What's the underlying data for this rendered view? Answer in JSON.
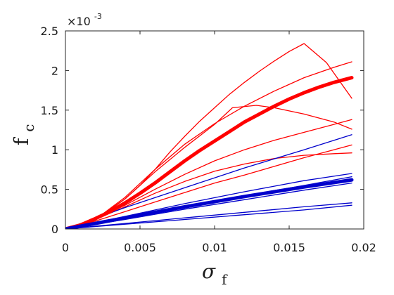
{
  "chart_data": {
    "type": "line",
    "title": "",
    "xlabel": "σ",
    "xlabel_sub": "f",
    "ylabel": "f",
    "ylabel_sub": "c",
    "y_multiplier_base": "×10",
    "y_multiplier_exp": "-3",
    "xlim": [
      0,
      0.02
    ],
    "ylim": [
      0,
      2.5
    ],
    "xticks": [
      0,
      0.005,
      0.01,
      0.015,
      0.02
    ],
    "xtick_labels": [
      "0",
      "0.005",
      "0.01",
      "0.015",
      "0.02"
    ],
    "yticks": [
      0,
      0.5,
      1,
      1.5,
      2,
      2.5
    ],
    "ytick_labels": [
      "0",
      "0.5",
      "1",
      "1.5",
      "2",
      "2.5"
    ],
    "grid": false,
    "colors": {
      "red": "#ff0000",
      "blue": "#0000cc"
    },
    "series": [
      {
        "color": "red",
        "width": 5,
        "x": [
          0,
          0.001,
          0.002,
          0.003,
          0.004,
          0.005,
          0.006,
          0.007,
          0.008,
          0.009,
          0.01,
          0.011,
          0.012,
          0.013,
          0.014,
          0.015,
          0.016,
          0.017,
          0.018,
          0.0192
        ],
        "y": [
          0,
          0.05,
          0.13,
          0.22,
          0.33,
          0.45,
          0.58,
          0.72,
          0.86,
          0.99,
          1.11,
          1.23,
          1.35,
          1.45,
          1.55,
          1.64,
          1.72,
          1.79,
          1.85,
          1.91
        ]
      },
      {
        "color": "red",
        "width": 1.3,
        "x": [
          0,
          0.002,
          0.003,
          0.004,
          0.005,
          0.006,
          0.007,
          0.008,
          0.009,
          0.01,
          0.011,
          0.012,
          0.013,
          0.014,
          0.015,
          0.016,
          0.0175,
          0.0192
        ],
        "y": [
          0,
          0.12,
          0.24,
          0.38,
          0.55,
          0.75,
          0.97,
          1.17,
          1.36,
          1.53,
          1.7,
          1.85,
          1.99,
          2.12,
          2.24,
          2.34,
          2.1,
          1.65
        ]
      },
      {
        "color": "red",
        "width": 1.3,
        "x": [
          0,
          0.002,
          0.004,
          0.006,
          0.008,
          0.01,
          0.012,
          0.014,
          0.016,
          0.018,
          0.0192
        ],
        "y": [
          0,
          0.12,
          0.4,
          0.75,
          1.07,
          1.33,
          1.55,
          1.74,
          1.91,
          2.04,
          2.11
        ]
      },
      {
        "color": "red",
        "width": 1.3,
        "x": [
          0,
          0.002,
          0.004,
          0.006,
          0.008,
          0.01,
          0.0112,
          0.0128,
          0.014,
          0.016,
          0.018,
          0.0192
        ],
        "y": [
          0,
          0.12,
          0.38,
          0.72,
          1.03,
          1.32,
          1.53,
          1.56,
          1.53,
          1.45,
          1.35,
          1.26
        ]
      },
      {
        "color": "red",
        "width": 1.3,
        "x": [
          0,
          0.002,
          0.004,
          0.006,
          0.008,
          0.01,
          0.012,
          0.014,
          0.016,
          0.018,
          0.0192
        ],
        "y": [
          0,
          0.12,
          0.3,
          0.5,
          0.69,
          0.86,
          1.0,
          1.12,
          1.22,
          1.32,
          1.38
        ]
      },
      {
        "color": "red",
        "width": 1.3,
        "x": [
          0,
          0.002,
          0.004,
          0.006,
          0.008,
          0.01,
          0.012,
          0.014,
          0.016,
          0.018,
          0.0192
        ],
        "y": [
          0,
          0.12,
          0.28,
          0.45,
          0.6,
          0.73,
          0.82,
          0.89,
          0.93,
          0.95,
          0.96
        ]
      },
      {
        "color": "red",
        "width": 1.3,
        "x": [
          0,
          0.002,
          0.004,
          0.006,
          0.008,
          0.01,
          0.012,
          0.014,
          0.016,
          0.018,
          0.0192
        ],
        "y": [
          0,
          0.1,
          0.22,
          0.34,
          0.46,
          0.58,
          0.68,
          0.79,
          0.9,
          1.0,
          1.06
        ]
      },
      {
        "color": "blue",
        "width": 1.3,
        "x": [
          0,
          0.004,
          0.008,
          0.012,
          0.016,
          0.0192
        ],
        "y": [
          0,
          0.27,
          0.52,
          0.77,
          1.0,
          1.19
        ]
      },
      {
        "color": "blue",
        "width": 1.3,
        "x": [
          0,
          0.004,
          0.008,
          0.012,
          0.016,
          0.0192
        ],
        "y": [
          0,
          0.16,
          0.32,
          0.47,
          0.61,
          0.7
        ]
      },
      {
        "color": "blue",
        "width": 1.3,
        "x": [
          0,
          0.004,
          0.008,
          0.012,
          0.016,
          0.0192
        ],
        "y": [
          0,
          0.14,
          0.28,
          0.42,
          0.55,
          0.66
        ]
      },
      {
        "color": "blue",
        "width": 5,
        "x": [
          0,
          0.004,
          0.008,
          0.012,
          0.016,
          0.0192
        ],
        "y": [
          0,
          0.14,
          0.28,
          0.41,
          0.53,
          0.62
        ]
      },
      {
        "color": "blue",
        "width": 1.3,
        "x": [
          0,
          0.004,
          0.008,
          0.012,
          0.016,
          0.0192
        ],
        "y": [
          0,
          0.12,
          0.25,
          0.37,
          0.49,
          0.58
        ]
      },
      {
        "color": "blue",
        "width": 1.3,
        "x": [
          0,
          0.004,
          0.008,
          0.012,
          0.016,
          0.0192
        ],
        "y": [
          0,
          0.07,
          0.14,
          0.21,
          0.28,
          0.33
        ]
      },
      {
        "color": "blue",
        "width": 1.3,
        "x": [
          0,
          0.004,
          0.008,
          0.012,
          0.016,
          0.0192
        ],
        "y": [
          0,
          0.06,
          0.12,
          0.18,
          0.24,
          0.3
        ]
      }
    ]
  }
}
